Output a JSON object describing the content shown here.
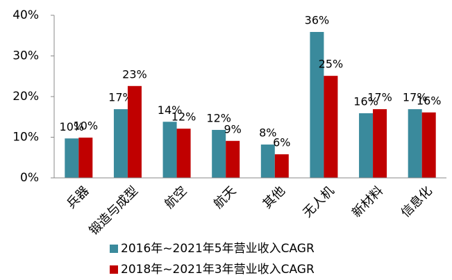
{
  "chart_data": {
    "type": "bar",
    "categories": [
      "兵器",
      "锻造与成型",
      "航空",
      "航天",
      "其他",
      "无人机",
      "新材料",
      "信息化"
    ],
    "series": [
      {
        "name": "2016年~2021年5年营业收入CAGR",
        "color": "#3a8a9c",
        "values": [
          9.7,
          16.9,
          13.8,
          11.8,
          8.2,
          35.9,
          15.9,
          16.9
        ],
        "value_labels": [
          "10%",
          "17%",
          "14%",
          "12%",
          "8%",
          "36%",
          "16%",
          "17%"
        ]
      },
      {
        "name": "2018年~2021年3年营业收入CAGR",
        "color": "#c00000",
        "values": [
          9.9,
          22.6,
          12.1,
          9.1,
          5.8,
          25.1,
          16.9,
          16.1
        ],
        "value_labels": [
          "10%",
          "23%",
          "12%",
          "9%",
          "6%",
          "25%",
          "17%",
          "16%"
        ]
      }
    ],
    "ylim": [
      0,
      40
    ],
    "yticks": [
      {
        "value": 0,
        "label": "0%"
      },
      {
        "value": 10,
        "label": "10%"
      },
      {
        "value": 20,
        "label": "20%"
      },
      {
        "value": 30,
        "label": "30%"
      },
      {
        "value": 40,
        "label": "40%"
      }
    ],
    "legend": "bottom"
  }
}
